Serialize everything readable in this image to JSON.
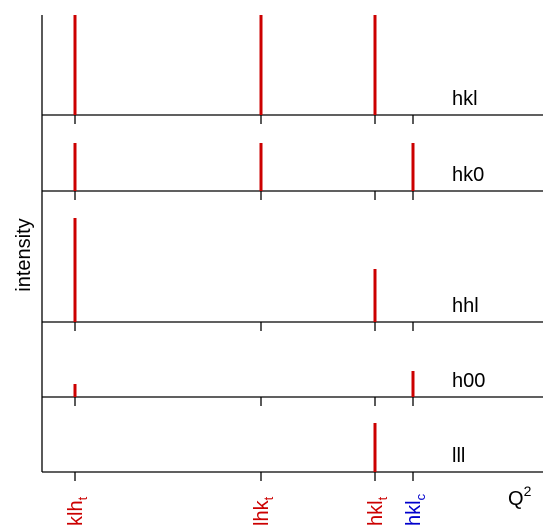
{
  "axis": {
    "y_label": "intensity",
    "x_label": "Q",
    "x_label_sup": "2"
  },
  "positions": [
    {
      "label": "klh",
      "sub": "t",
      "color": "#cc0000"
    },
    {
      "label": "lhk",
      "sub": "t",
      "color": "#cc0000"
    },
    {
      "label": "hkl",
      "sub": "t",
      "color": "#cc0000"
    },
    {
      "label": "hkl",
      "sub": "c",
      "color": "#0000cc"
    }
  ],
  "bar_color": "#cc0000",
  "panels": [
    {
      "label": "hkl",
      "intensities": [
        100,
        100,
        100,
        null
      ]
    },
    {
      "label": "hk0",
      "intensities": [
        48,
        48,
        null,
        48
      ]
    },
    {
      "label": "hhl",
      "intensities": [
        104,
        null,
        53,
        null
      ]
    },
    {
      "label": "h00",
      "intensities": [
        13,
        null,
        null,
        26
      ]
    },
    {
      "label": "lll",
      "intensities": [
        null,
        null,
        49,
        null
      ]
    }
  ]
}
